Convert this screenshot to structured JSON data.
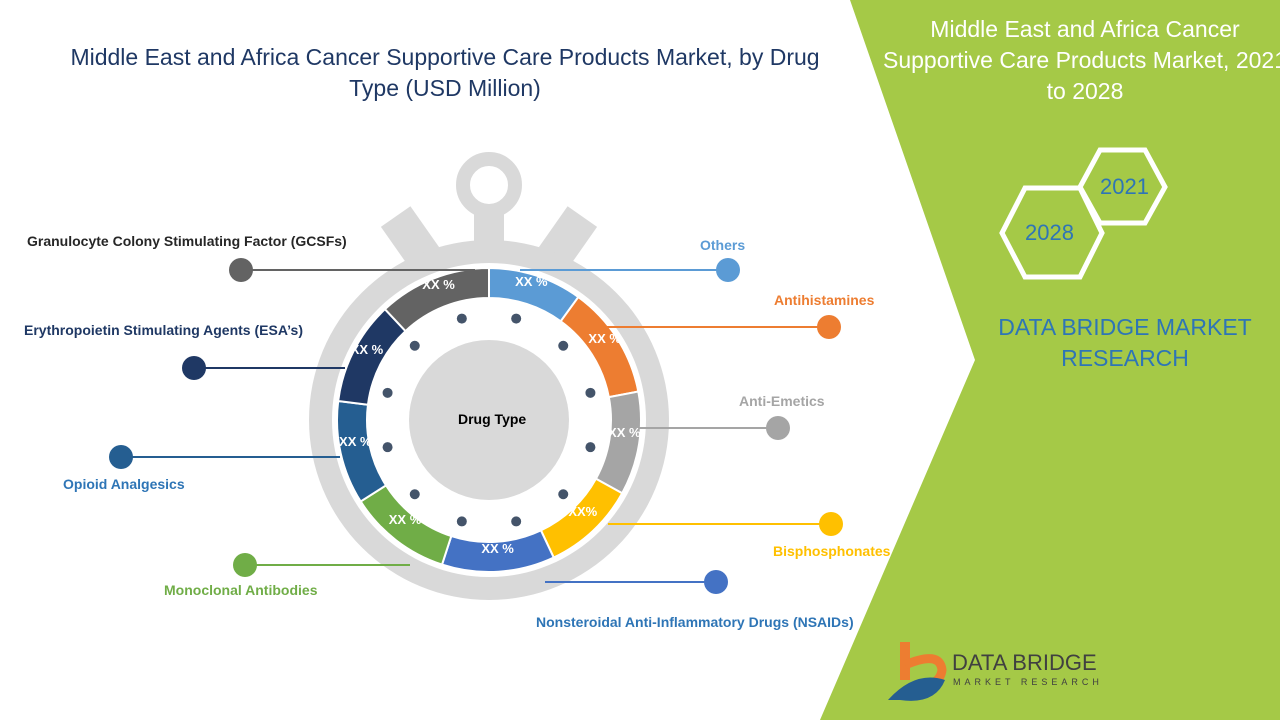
{
  "title": "Middle East and Africa Cancer Supportive Care Products Market, by Drug Type (USD Million)",
  "side_panel": {
    "title": "Middle East and Africa Cancer Supportive Care Products Market, 2021 to 2028",
    "year_start": "2021",
    "year_end": "2028",
    "brand": "DATA BRIDGE MARKET RESEARCH",
    "panel_color": "#a5c947"
  },
  "logo": {
    "line1": "DATA BRIDGE",
    "line2": "MARKET RESEARCH"
  },
  "chart_data": {
    "type": "pie",
    "variant": "donut",
    "center_label": "Drug Type",
    "categories": [
      "Others",
      "Antihistamines",
      "Anti-Emetics",
      "Bisphosphonates",
      "Nonsteroidal Anti-Inflammatory Drugs (NSAIDs)",
      "Monoclonal Antibodies",
      "Opioid Analgesics",
      "Erythropoietin Stimulating Agents (ESA’s)",
      "Granulocyte Colony Stimulating Factor (GCSFs)"
    ],
    "data_labels": [
      "XX %",
      "XX %",
      "XX %",
      "XX%",
      "XX %",
      "XX %",
      "XX %",
      "XX %",
      "XX %"
    ],
    "values": [
      10,
      12,
      11,
      10,
      12,
      11,
      11,
      11,
      12
    ],
    "colors": [
      "#5b9bd5",
      "#ed7d31",
      "#a5a5a5",
      "#ffc000",
      "#4472c4",
      "#70ad47",
      "#255e91",
      "#1f3864",
      "#636363"
    ]
  }
}
